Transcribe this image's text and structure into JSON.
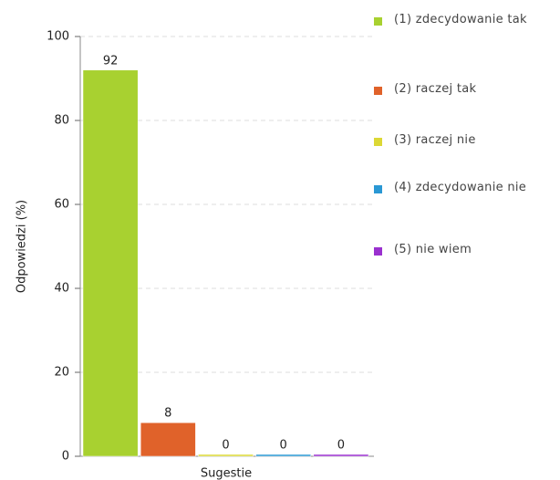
{
  "chart_data": {
    "type": "bar",
    "categories": [
      "Sugestie"
    ],
    "xlabel": "Sugestie",
    "ylabel": "Odpowiedzi (%)",
    "ylim": [
      0,
      100
    ],
    "yticks": [
      0,
      20,
      40,
      60,
      80,
      100
    ],
    "grid": true,
    "legend": "right",
    "series": [
      {
        "name": "(1) zdecydowanie tak",
        "color": "#a8d130",
        "values": [
          92
        ]
      },
      {
        "name": "(2) raczej tak",
        "color": "#e0622a",
        "values": [
          8
        ]
      },
      {
        "name": "(3) raczej nie",
        "color": "#dcd835",
        "values": [
          0
        ]
      },
      {
        "name": "(4) zdecydowanie nie",
        "color": "#2a98d4",
        "values": [
          0
        ]
      },
      {
        "name": "(5) nie wiem",
        "color": "#9a30cf",
        "values": [
          0
        ]
      }
    ]
  }
}
